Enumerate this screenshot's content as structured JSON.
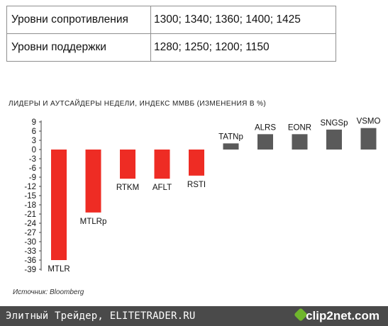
{
  "levels": {
    "resistance": {
      "label": "Уровни сопротивления",
      "value": "1300; 1340; 1360; 1400; 1425"
    },
    "support": {
      "label": "Уровни поддержки",
      "value": "1280; 1250; 1200; 1150"
    }
  },
  "chart_data": {
    "type": "bar",
    "title": "ЛИДЕРЫ И АУТСАЙДЕРЫ НЕДЕЛИ, ИНДЕКС ММВБ (ИЗМЕНЕНИЯ В %)",
    "categories": [
      "MTLR",
      "MTLRp",
      "RTKM",
      "AFLT",
      "RSTI",
      "TATNp",
      "ALRS",
      "EONR",
      "SNGSp",
      "VSMO"
    ],
    "values": [
      -36,
      -20.5,
      -9.5,
      -9.5,
      -8.5,
      2,
      5,
      5,
      6.5,
      7
    ],
    "y_ticks": [
      9,
      6,
      3,
      0,
      -3,
      -6,
      -9,
      -12,
      -15,
      -18,
      -21,
      -24,
      -27,
      -30,
      -33,
      -36,
      -39
    ],
    "ylim": [
      -39,
      9
    ],
    "grid": false,
    "colors": {
      "negative": "#ee2c24",
      "positive": "#5a5a5a"
    },
    "source": "Источник: Bloomberg"
  },
  "footer": {
    "text": "Элитный Трейдер, ELITETRADER.RU",
    "logo": "clip2net.com",
    "logo_icon": "clip2net-diamond-icon"
  }
}
